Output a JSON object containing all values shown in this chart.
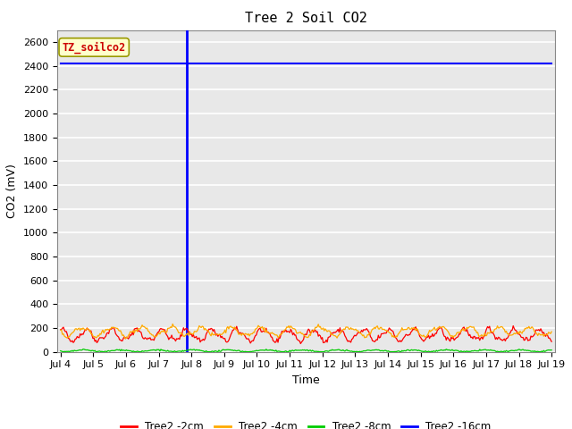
{
  "title": "Tree 2 Soil CO2",
  "ylabel": "CO2 (mV)",
  "xlabel": "Time",
  "ylim": [
    0,
    2700
  ],
  "yticks": [
    0,
    200,
    400,
    600,
    800,
    1000,
    1200,
    1400,
    1600,
    1800,
    2000,
    2200,
    2400,
    2600
  ],
  "x_start_day": 4,
  "x_end_day": 19,
  "x_tick_days": [
    4,
    5,
    6,
    7,
    8,
    9,
    10,
    11,
    12,
    13,
    14,
    15,
    16,
    17,
    18,
    19
  ],
  "x_tick_labels": [
    "Jul 4",
    "Jul 5",
    "Jul 6",
    "Jul 7",
    "Jul 8",
    "Jul 9",
    "Jul 10",
    "Jul 11",
    "Jul 12",
    "Jul 13",
    "Jul 14",
    "Jul 15",
    "Jul 16",
    "Jul 17",
    "Jul 18",
    "Jul 19"
  ],
  "blue_horizontal_value": 2420,
  "blue_vertical_x": 7.85,
  "annotation_label": "TZ_soilco2",
  "annotation_bg": "#ffffcc",
  "annotation_border": "#999900",
  "annotation_text_color": "#cc0000",
  "red_base": 140,
  "red_amplitude": 45,
  "orange_base": 170,
  "orange_amplitude": 35,
  "green_base": 8,
  "green_amplitude": 8,
  "colors": {
    "red": "#ff0000",
    "orange": "#ffaa00",
    "green": "#00cc00",
    "blue": "#0000ff"
  },
  "legend_labels": [
    "Tree2 -2cm",
    "Tree2 -4cm",
    "Tree2 -8cm",
    "Tree2 -16cm"
  ],
  "bg_color": "#d8d8d8",
  "plot_bg_color": "#e8e8e8",
  "title_fontsize": 11,
  "axis_label_fontsize": 9,
  "tick_fontsize": 8
}
